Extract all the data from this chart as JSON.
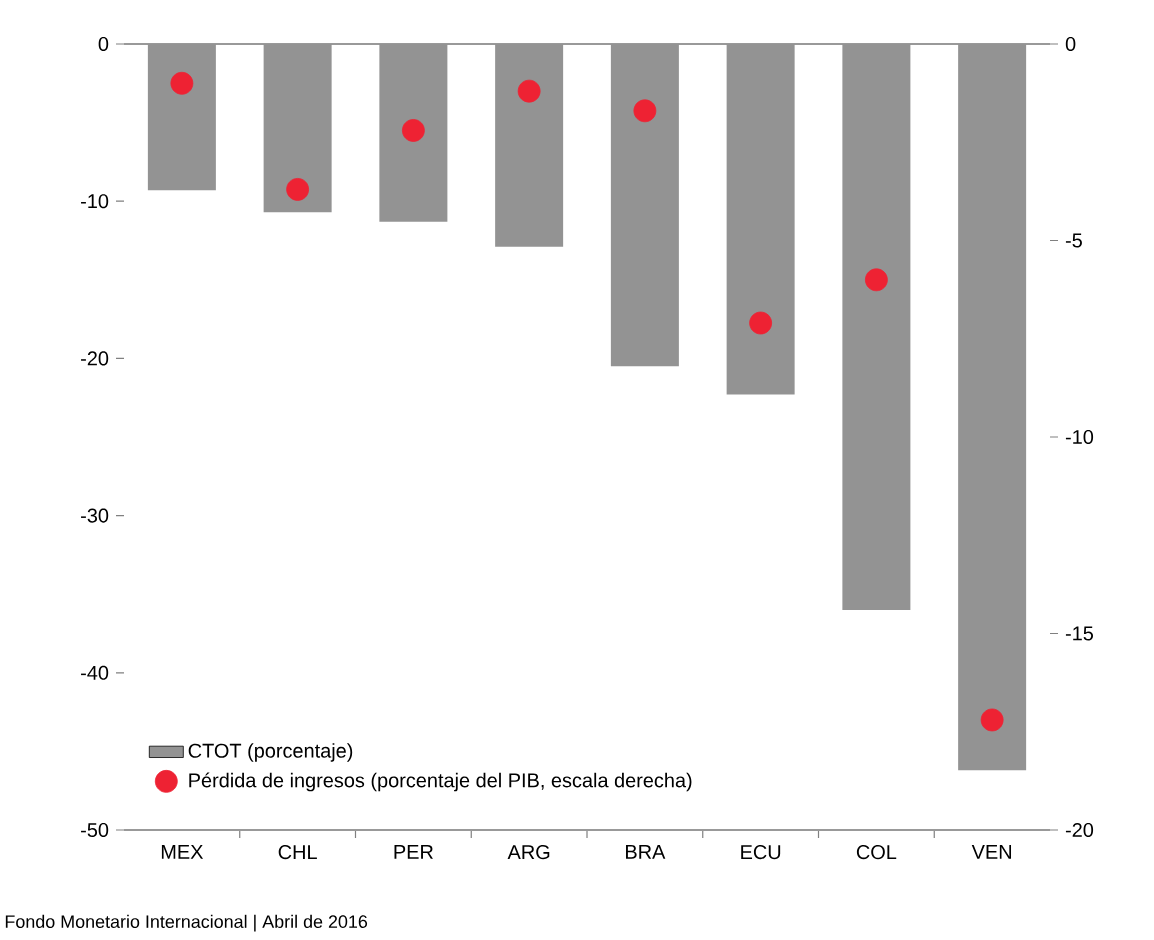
{
  "chart_data": {
    "type": "bar",
    "categories": [
      "MEX",
      "CHL",
      "PER",
      "ARG",
      "BRA",
      "ECU",
      "COL",
      "VEN"
    ],
    "series": [
      {
        "name": "CTOT (porcentaje)",
        "type": "bar",
        "color": "#939393",
        "values": [
          -9.3,
          -10.7,
          -11.3,
          -12.9,
          -20.5,
          -22.3,
          -36.0,
          -46.2
        ]
      },
      {
        "name": "Pérdida de ingresos (porcentaje del PIB, escala derecha)",
        "type": "scatter",
        "axis": "y2",
        "color": "#ee2233",
        "marker": "circle",
        "values": [
          -1.0,
          -3.7,
          -2.2,
          -1.2,
          -1.7,
          -7.1,
          -6.0,
          -17.2
        ]
      }
    ],
    "ylim": [
      -50,
      0
    ],
    "yticks": [
      0,
      -10,
      -20,
      -30,
      -40,
      -50
    ],
    "y2lim": [
      -20,
      0
    ],
    "y2ticks": [
      0,
      -5,
      -10,
      -15,
      -20
    ],
    "legend": "bottom left",
    "annotations": [
      "Fondo Monetario Internacional | Abril de 2016"
    ]
  }
}
